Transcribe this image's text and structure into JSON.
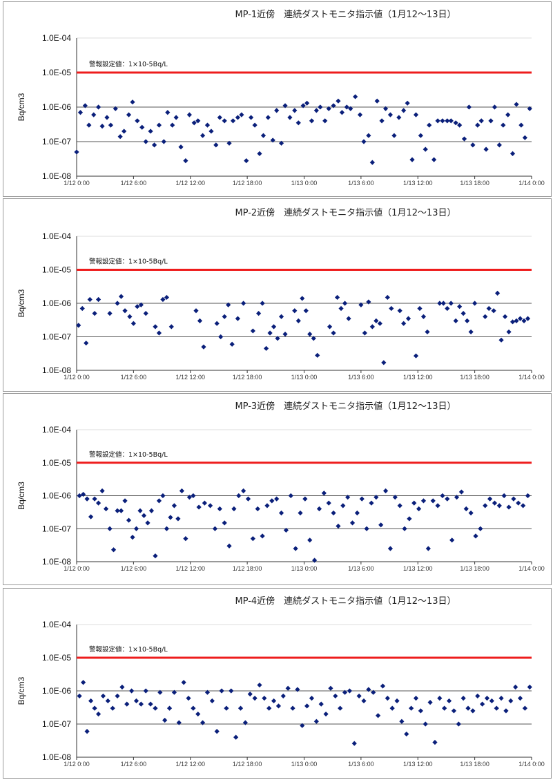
{
  "colors": {
    "marker": "#0a1f7a",
    "threshold": "#ee1c1c",
    "grid": "#555555",
    "axis": "#333333"
  },
  "chart_data": [
    {
      "type": "scatter",
      "title": "MP-1近傍　連続ダストモニタ指示値（1月12～13日）",
      "ylabel": "Bq/cm3",
      "y_scale": "log",
      "ylim": [
        1e-08,
        0.0001
      ],
      "y_ticks": [
        "1.0E-04",
        "1.0E-05",
        "1.0E-06",
        "1.0E-07",
        "1.0E-08"
      ],
      "x_ticks": [
        "1/12 0:00",
        "1/12 6:00",
        "1/12 12:00",
        "1/12 18:00",
        "1/13 0:00",
        "1/13 6:00",
        "1/13 12:00",
        "1/13 18:00",
        "1/14 0:00"
      ],
      "xlim_hours": [
        0,
        48
      ],
      "threshold": {
        "value": 1e-05,
        "label": "警報設定値：1×10-5Bq/L"
      },
      "series": [
        {
          "x_hours": [
            0.0,
            0.4,
            0.9,
            1.3,
            1.8,
            2.3,
            2.7,
            3.2,
            3.6,
            4.1,
            4.6,
            5.0,
            5.5,
            5.9,
            6.4,
            6.9,
            7.3,
            7.8,
            8.2,
            8.7,
            9.2,
            9.6,
            10.1,
            10.5,
            11.0,
            11.5,
            11.9,
            12.4,
            12.8,
            13.3,
            13.8,
            14.2,
            14.7,
            15.1,
            15.6,
            16.1,
            16.5,
            17.0,
            17.4,
            17.9,
            18.4,
            18.8,
            19.3,
            19.7,
            20.2,
            20.7,
            21.1,
            21.6,
            22.0,
            22.5,
            23.0,
            23.4,
            23.9,
            24.3,
            24.8,
            25.3,
            25.7,
            26.2,
            26.6,
            27.1,
            27.6,
            28.0,
            28.5,
            28.9,
            29.4,
            29.9,
            30.3,
            30.8,
            31.2,
            31.7,
            32.2,
            32.6,
            33.1,
            33.5,
            34.0,
            34.5,
            34.9,
            35.4,
            35.8,
            36.3,
            36.8,
            37.2,
            37.7,
            38.1,
            38.6,
            39.1,
            39.5,
            40.0,
            40.4,
            40.9,
            41.4,
            41.8,
            42.3,
            42.7,
            43.2,
            43.7,
            44.1,
            44.6,
            45.0,
            45.5,
            46.0,
            46.4,
            46.9,
            47.3,
            47.8
          ],
          "values": [
            5e-08,
            7e-07,
            1.1e-06,
            3e-07,
            6e-07,
            1e-06,
            2.8e-07,
            5e-07,
            3e-07,
            9e-07,
            1.4e-07,
            2e-07,
            6e-07,
            1.4e-06,
            4e-07,
            2.6e-07,
            1e-07,
            2e-07,
            8e-08,
            3e-07,
            1e-07,
            7e-07,
            3e-07,
            5e-07,
            7e-08,
            2.8e-08,
            6e-07,
            3.5e-07,
            4e-07,
            1.5e-07,
            3e-07,
            2e-07,
            8e-08,
            5e-07,
            4e-07,
            9e-08,
            4e-07,
            5e-07,
            6e-07,
            2.8e-08,
            5e-07,
            3e-07,
            4.5e-08,
            1.5e-07,
            5e-07,
            1.1e-07,
            8e-07,
            9e-08,
            1.1e-06,
            5e-07,
            8e-07,
            3.5e-07,
            1.1e-06,
            1.3e-06,
            4e-07,
            8e-07,
            1e-06,
            4e-07,
            9e-07,
            1.1e-06,
            1.5e-06,
            7e-07,
            1e-06,
            9e-07,
            2e-06,
            6e-07,
            1e-07,
            1.5e-07,
            2.5e-08,
            1.5e-06,
            4e-07,
            9e-07,
            6e-07,
            1.5e-07,
            5e-07,
            8e-07,
            1.3e-06,
            3e-08,
            6e-07,
            1.5e-07,
            6e-08,
            3e-07,
            3e-08,
            4e-07,
            4e-07,
            4e-07,
            4e-07,
            3.5e-07,
            3e-07,
            1.2e-07,
            1e-06,
            8e-08,
            3e-07,
            4e-07,
            6e-08,
            4e-07,
            1e-06,
            8e-08,
            3e-07,
            6e-07,
            4.5e-08,
            1.2e-06,
            3e-07,
            1.3e-07,
            9e-07
          ]
        }
      ]
    },
    {
      "type": "scatter",
      "title": "MP-2近傍　連続ダストモニタ指示値（1月12～13日）",
      "ylabel": "Bq/cm3",
      "y_scale": "log",
      "ylim": [
        1e-08,
        0.0001
      ],
      "y_ticks": [
        "1.0E-04",
        "1.0E-05",
        "1.0E-06",
        "1.0E-07",
        "1.0E-08"
      ],
      "x_ticks": [
        "1/12 0:00",
        "1/12 6:00",
        "1/12 12:00",
        "1/12 18:00",
        "1/13 0:00",
        "1/13 6:00",
        "1/13 12:00",
        "1/13 18:00",
        "1/14 0:00"
      ],
      "xlim_hours": [
        0,
        48
      ],
      "threshold": {
        "value": 1e-05,
        "label": "警報設定値：1×10-5Bq/L"
      },
      "series": [
        {
          "x_hours": [
            0.2,
            0.6,
            1.0,
            1.4,
            1.9,
            2.3,
            3.5,
            4.3,
            4.7,
            5.1,
            5.6,
            6.0,
            6.4,
            6.8,
            7.3,
            8.3,
            8.7,
            9.1,
            9.5,
            10.0,
            12.6,
            13.0,
            13.4,
            14.8,
            15.2,
            15.6,
            16.0,
            16.4,
            17.0,
            17.6,
            18.6,
            19.2,
            19.6,
            20.0,
            20.4,
            20.8,
            21.2,
            21.6,
            22.0,
            23.0,
            23.4,
            23.8,
            24.2,
            24.6,
            25.0,
            25.4,
            26.7,
            27.1,
            27.5,
            27.9,
            28.3,
            28.7,
            30.0,
            30.4,
            30.8,
            31.2,
            31.6,
            32.0,
            32.4,
            32.8,
            33.2,
            34.1,
            34.5,
            35.0,
            35.8,
            36.2,
            36.6,
            37.0,
            38.3,
            38.7,
            39.1,
            39.5,
            40.0,
            40.4,
            40.8,
            41.2,
            41.6,
            42.0,
            43.1,
            43.5,
            44.0,
            44.4,
            44.8,
            45.2,
            45.6,
            46.0,
            46.4,
            46.8,
            47.2,
            47.6
          ],
          "values": [
            2.2e-07,
            7e-07,
            6.5e-08,
            1.3e-06,
            5e-07,
            1.3e-06,
            5e-07,
            1e-06,
            1.6e-06,
            6e-07,
            4e-07,
            2.5e-07,
            8e-07,
            9e-07,
            5e-07,
            2e-07,
            1.3e-07,
            1.3e-06,
            1.5e-06,
            2e-07,
            6e-07,
            3e-07,
            5e-08,
            2.5e-07,
            1e-07,
            4e-07,
            9e-07,
            6e-08,
            3.5e-07,
            1e-06,
            1.5e-07,
            5e-07,
            1e-06,
            4.5e-08,
            1.3e-07,
            2e-07,
            9e-08,
            4e-07,
            1.2e-07,
            6e-07,
            3e-07,
            1.4e-06,
            6e-07,
            1.2e-07,
            9e-08,
            2.8e-08,
            2e-07,
            1.3e-07,
            1.5e-06,
            7e-07,
            1e-06,
            3.5e-07,
            9e-07,
            1.3e-07,
            1.1e-06,
            2e-07,
            3e-07,
            2.5e-07,
            1.7e-08,
            1.5e-06,
            7e-07,
            6e-07,
            2.5e-07,
            3.5e-07,
            2.7e-08,
            7e-07,
            4e-07,
            1.4e-07,
            1e-06,
            1e-06,
            7e-07,
            1e-06,
            3e-07,
            8e-07,
            5e-07,
            3e-07,
            1.4e-07,
            1e-06,
            4e-07,
            7e-07,
            6e-07,
            2e-06,
            8e-08,
            4e-07,
            1.4e-07,
            2.8e-07,
            3e-07,
            3.5e-07,
            3e-07,
            3.5e-07
          ]
        }
      ]
    },
    {
      "type": "scatter",
      "title": "MP-3近傍　連続ダストモニタ指示値（1月12～13日）",
      "ylabel": "Bq/cm3",
      "y_scale": "log",
      "ylim": [
        1e-08,
        0.0001
      ],
      "y_ticks": [
        "1.0E-04",
        "1.0E-05",
        "1.0E-06",
        "1.0E-07",
        "1.0E-08"
      ],
      "x_ticks": [
        "1/12 0:00",
        "1/12 6:00",
        "1/12 12:00",
        "1/12 18:00",
        "1/13 0:00",
        "1/13 6:00",
        "1/13 12:00",
        "1/13 18:00",
        "1/14 0:00"
      ],
      "xlim_hours": [
        0,
        48
      ],
      "threshold": {
        "value": 1e-05,
        "label": "警報設定値：1×10-5Bq/L"
      },
      "series": [
        {
          "x_hours": [
            0.3,
            0.7,
            1.1,
            1.5,
            1.9,
            2.3,
            2.7,
            3.1,
            3.5,
            3.9,
            4.3,
            4.7,
            5.1,
            5.5,
            5.9,
            6.3,
            6.7,
            7.1,
            7.5,
            7.9,
            8.3,
            8.7,
            9.1,
            9.5,
            9.9,
            10.3,
            10.7,
            11.1,
            11.5,
            11.9,
            12.3,
            12.9,
            13.5,
            14.1,
            14.6,
            15.1,
            15.6,
            16.1,
            16.6,
            17.1,
            17.6,
            18.1,
            18.6,
            19.1,
            19.6,
            20.1,
            20.6,
            21.1,
            21.6,
            22.1,
            22.6,
            23.1,
            23.6,
            24.1,
            24.6,
            25.1,
            25.6,
            26.1,
            26.6,
            27.1,
            27.6,
            28.1,
            28.6,
            29.1,
            29.6,
            30.1,
            30.6,
            31.1,
            31.6,
            32.1,
            32.6,
            33.1,
            33.6,
            34.1,
            34.6,
            35.1,
            35.6,
            36.1,
            36.6,
            37.1,
            37.6,
            38.1,
            38.6,
            39.1,
            39.6,
            40.1,
            40.6,
            41.1,
            41.6,
            42.1,
            42.6,
            43.1,
            43.6,
            44.1,
            44.6,
            45.1,
            45.6,
            46.1,
            46.6,
            47.1,
            47.6
          ],
          "values": [
            1e-06,
            1.1e-06,
            8e-07,
            2.3e-07,
            8e-07,
            6e-07,
            1.4e-06,
            4e-07,
            1e-07,
            2.3e-08,
            3.5e-07,
            3.5e-07,
            7e-07,
            1.8e-07,
            5.5e-08,
            1e-07,
            3.5e-07,
            2.5e-07,
            1.5e-07,
            3.5e-07,
            1.5e-08,
            7e-07,
            1e-06,
            1e-07,
            2.2e-07,
            5e-07,
            2e-07,
            1.4e-06,
            5e-08,
            9e-07,
            1e-06,
            4.5e-07,
            6e-07,
            5e-07,
            1e-07,
            4e-07,
            1.5e-07,
            3e-08,
            4e-07,
            1e-06,
            1.4e-06,
            8e-07,
            5e-08,
            4e-07,
            6e-08,
            5e-07,
            7e-07,
            8e-07,
            3e-07,
            9e-08,
            1e-06,
            2.5e-08,
            3e-07,
            8e-07,
            4.5e-08,
            1.1e-08,
            4e-07,
            1.2e-06,
            6e-07,
            3e-07,
            1.2e-07,
            5e-07,
            9e-07,
            1.5e-07,
            3e-07,
            8e-07,
            1e-07,
            6e-07,
            9e-07,
            1.3e-07,
            1.4e-06,
            2.5e-08,
            9e-07,
            5e-07,
            1e-07,
            2e-07,
            6e-07,
            4e-07,
            7e-07,
            2.5e-08,
            7e-07,
            5e-07,
            1e-06,
            8e-07,
            4.5e-08,
            9e-07,
            1.3e-06,
            4e-07,
            3e-07,
            6e-08,
            1e-07,
            5e-07,
            8e-07,
            6e-07,
            5e-07,
            1e-06,
            4.5e-07,
            8e-07,
            6e-07,
            5e-07,
            1e-06
          ]
        }
      ]
    },
    {
      "type": "scatter",
      "title": "MP-4近傍　連続ダストモニタ指示値（1月12～13日）",
      "ylabel": "Bq/cm3",
      "y_scale": "log",
      "ylim": [
        1e-08,
        0.0001
      ],
      "y_ticks": [
        "1.0E-04",
        "1.0E-05",
        "1.0E-06",
        "1.0E-07",
        "1.0E-08"
      ],
      "x_ticks": [
        "1/12 0:00",
        "1/12 6:00",
        "1/12 12:00",
        "1/12 18:00",
        "1/13 0:00",
        "1/13 6:00",
        "1/13 12:00",
        "1/13 18:00",
        "1/14 0:00"
      ],
      "xlim_hours": [
        0,
        48
      ],
      "threshold": {
        "value": 1e-05,
        "label": "警報設定値：1×10-5Bq/L"
      },
      "series": [
        {
          "x_hours": [
            0.3,
            0.7,
            1.1,
            1.5,
            1.9,
            2.3,
            2.8,
            3.3,
            3.8,
            4.3,
            4.8,
            5.3,
            5.8,
            6.3,
            6.8,
            7.3,
            7.8,
            8.3,
            8.8,
            9.3,
            9.8,
            10.3,
            10.8,
            11.3,
            11.8,
            12.3,
            12.8,
            13.3,
            13.8,
            14.3,
            14.8,
            15.3,
            15.8,
            16.3,
            16.8,
            17.3,
            17.8,
            18.3,
            18.8,
            19.3,
            19.8,
            20.3,
            20.8,
            21.3,
            21.8,
            22.3,
            22.8,
            23.3,
            23.8,
            24.3,
            24.8,
            25.3,
            25.8,
            26.3,
            26.8,
            27.3,
            27.8,
            28.3,
            28.8,
            29.3,
            29.8,
            30.3,
            30.8,
            31.3,
            31.8,
            32.3,
            32.8,
            33.3,
            33.8,
            34.3,
            34.8,
            35.3,
            35.8,
            36.3,
            36.8,
            37.3,
            37.8,
            38.3,
            38.8,
            39.3,
            39.8,
            40.3,
            40.8,
            41.3,
            41.8,
            42.3,
            42.8,
            43.3,
            43.8,
            44.3,
            44.8,
            45.3,
            45.8,
            46.3,
            46.8,
            47.3,
            47.8
          ],
          "values": [
            7e-07,
            1.8e-06,
            6e-08,
            5e-07,
            3e-07,
            2e-07,
            7e-07,
            5e-07,
            3e-07,
            7e-07,
            1.3e-06,
            4e-07,
            1e-06,
            5e-07,
            4e-07,
            1e-06,
            4e-07,
            3e-07,
            9e-07,
            1.3e-07,
            3e-07,
            9e-07,
            1.1e-07,
            1.8e-06,
            6e-07,
            3e-07,
            2e-07,
            1.1e-07,
            9e-07,
            5e-07,
            6e-08,
            1e-06,
            3e-07,
            1e-06,
            4e-08,
            3e-07,
            1.1e-07,
            8e-07,
            6e-07,
            1.5e-06,
            6e-07,
            3e-07,
            5e-07,
            3.5e-07,
            7e-07,
            1.2e-06,
            3e-07,
            1.1e-06,
            9e-08,
            3.5e-07,
            6e-07,
            1.2e-07,
            4e-07,
            2e-07,
            1.2e-06,
            7e-07,
            3e-07,
            9e-07,
            1e-06,
            2.6e-08,
            7e-07,
            5e-07,
            1.1e-06,
            9e-07,
            1.8e-07,
            1.4e-06,
            6e-07,
            3e-07,
            5e-07,
            1.2e-07,
            5e-08,
            3e-07,
            6e-07,
            2.5e-07,
            1e-07,
            4.5e-07,
            2.8e-08,
            6e-07,
            3e-07,
            5e-07,
            2.5e-07,
            1e-07,
            6e-07,
            3e-07,
            2.5e-07,
            7e-07,
            4e-07,
            6e-07,
            5e-07,
            3e-07,
            6e-07,
            2.5e-07,
            5e-07,
            1.3e-06,
            6e-07,
            3e-07,
            1.3e-06
          ]
        }
      ]
    }
  ]
}
